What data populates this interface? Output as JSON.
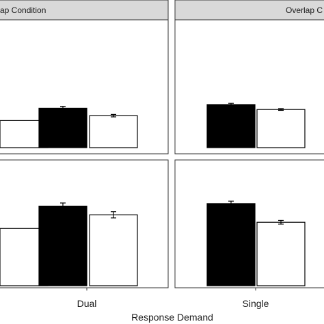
{
  "chart_data": {
    "type": "bar",
    "xlabel": "Response Demand",
    "categories": [
      "Dual",
      "Single"
    ],
    "legend": "none",
    "grid": false,
    "ylim": [
      0,
      1
    ],
    "series_colors": [
      "#000000",
      "#ffffff"
    ],
    "panels": [
      {
        "strip": "No Overlap Condition",
        "strip_visible": "ap Condition",
        "row": 1,
        "col": 1,
        "groups": [
          {
            "category": "Single",
            "values": [
              null,
              0.22
            ]
          },
          {
            "category": "Dual",
            "values": [
              0.32,
              0.26
            ],
            "errors": [
              0.015,
              0.01
            ]
          }
        ]
      },
      {
        "strip": "Overlap Condition",
        "strip_visible": "Overlap C",
        "row": 1,
        "col": 2,
        "groups": [
          {
            "category": "Single",
            "values": [
              0.35,
              0.31
            ],
            "errors": [
              0.01,
              0.007
            ]
          }
        ]
      },
      {
        "strip": "",
        "row": 2,
        "col": 1,
        "groups": [
          {
            "category": "Single",
            "values": [
              null,
              0.46
            ]
          },
          {
            "category": "Dual",
            "values": [
              0.64,
              0.57
            ],
            "errors": [
              0.025,
              0.025
            ]
          }
        ]
      },
      {
        "strip": "",
        "row": 2,
        "col": 2,
        "groups": [
          {
            "category": "Single",
            "values": [
              0.66,
              0.51
            ],
            "errors": [
              0.02,
              0.015
            ]
          }
        ]
      }
    ]
  },
  "panel_strips": {
    "top_left": "ap Condition",
    "top_right": "Overlap C"
  },
  "x_ticks": {
    "left": "Dual",
    "right": "Single"
  },
  "x_axis_title": "Response Demand"
}
